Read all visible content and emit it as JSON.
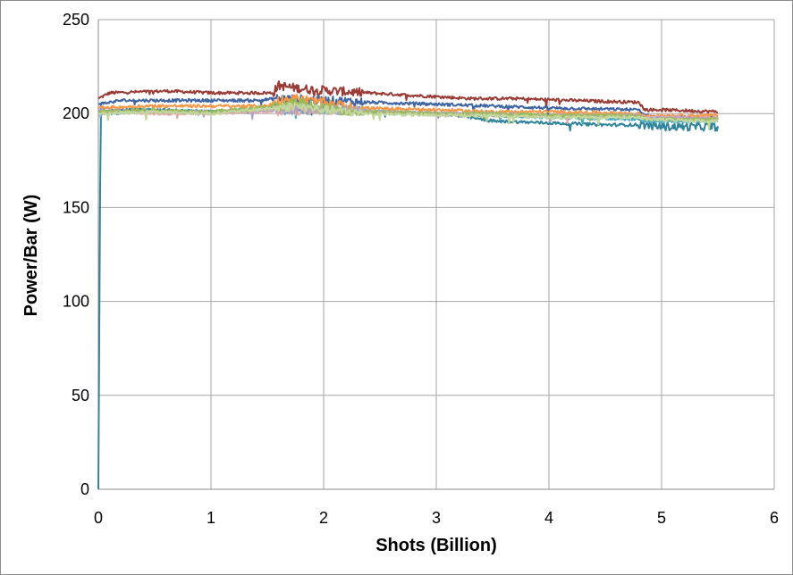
{
  "chart_data": {
    "type": "line",
    "title": "",
    "xlabel": "Shots (Billion)",
    "ylabel": "Power/Bar (W)",
    "xlim": [
      0,
      6
    ],
    "ylim": [
      0,
      250
    ],
    "x_ticks": [
      0,
      1,
      2,
      3,
      4,
      5,
      6
    ],
    "y_ticks": [
      0,
      50,
      100,
      150,
      200,
      250
    ],
    "grid": true,
    "legend": "none",
    "series": [
      {
        "color": "#9b3b36",
        "x": [
          0,
          0.1,
          0.6,
          1.0,
          1.55,
          1.6,
          1.7,
          1.85,
          2.1,
          2.4,
          3.0,
          3.3,
          3.7,
          4.2,
          4.8,
          4.85,
          5.0,
          5.5
        ],
        "y": [
          208,
          211,
          212,
          211,
          211,
          215,
          214,
          213,
          212,
          211,
          209,
          208,
          208,
          207,
          206,
          202,
          202,
          201
        ]
      },
      {
        "color": "#3e64a3",
        "x": [
          0,
          0.2,
          0.8,
          1.4,
          1.6,
          2.0,
          2.4,
          3.0,
          3.5,
          4.0,
          4.8,
          4.85,
          5.0,
          5.5
        ],
        "y": [
          205,
          207,
          207,
          207,
          208,
          207,
          206,
          205,
          204,
          203,
          202,
          199,
          198,
          198
        ]
      },
      {
        "color": "#31849b",
        "x": [
          0,
          0.02,
          0.5,
          1.0,
          1.6,
          2.0,
          2.4,
          3.0,
          3.3,
          3.5,
          4.0,
          4.5,
          4.8,
          4.85,
          5.0,
          5.2,
          5.5
        ],
        "y": [
          0,
          202,
          202,
          201,
          203,
          203,
          201,
          200,
          198,
          196,
          195,
          194,
          194,
          194,
          193,
          193,
          193
        ]
      },
      {
        "color": "#f79646",
        "x": [
          0,
          0.4,
          1.0,
          1.5,
          1.6,
          1.75,
          2.0,
          2.3,
          3.0,
          3.5,
          4.0,
          4.8,
          4.85,
          5.5
        ],
        "y": [
          203,
          204,
          204,
          204,
          207,
          208,
          206,
          203,
          202,
          201,
          201,
          200,
          199,
          199
        ]
      },
      {
        "color": "#4bacc6",
        "x": [
          0,
          0.5,
          1.0,
          1.6,
          2.0,
          2.5,
          3.0,
          3.5,
          4.0,
          4.8,
          4.85,
          5.5
        ],
        "y": [
          200,
          201,
          201,
          202,
          202,
          201,
          200,
          199,
          198,
          197,
          196,
          196
        ]
      },
      {
        "color": "#e6a9a5",
        "x": [
          0,
          0.5,
          1.0,
          1.5,
          2.0,
          2.5,
          3.0,
          3.5,
          4.0,
          4.8,
          4.85,
          5.5
        ],
        "y": [
          201,
          200,
          200,
          201,
          202,
          201,
          200,
          199,
          199,
          199,
          198,
          198
        ]
      },
      {
        "color": "#b3a2c7",
        "x": [
          0,
          0.5,
          1.0,
          1.6,
          2.0,
          2.5,
          3.0,
          3.5,
          4.0,
          4.8,
          4.85,
          5.5
        ],
        "y": [
          202,
          201,
          201,
          202,
          202,
          201,
          200,
          200,
          199,
          199,
          198,
          197
        ]
      },
      {
        "color": "#9bbb59",
        "x": [
          0,
          0.4,
          1.0,
          1.6,
          1.8,
          2.0,
          2.3,
          3.0,
          3.5,
          4.0,
          4.8,
          4.85,
          5.5
        ],
        "y": [
          201,
          202,
          201,
          204,
          206,
          203,
          201,
          200,
          200,
          199,
          199,
          197,
          197
        ]
      },
      {
        "color": "#c3d69b",
        "x": [
          0,
          0.5,
          1.0,
          1.6,
          1.75,
          2.0,
          2.4,
          3.0,
          3.5,
          4.0,
          4.8,
          4.85,
          5.5
        ],
        "y": [
          200,
          201,
          200,
          203,
          204,
          202,
          200,
          199,
          199,
          198,
          198,
          197,
          196
        ]
      }
    ]
  }
}
